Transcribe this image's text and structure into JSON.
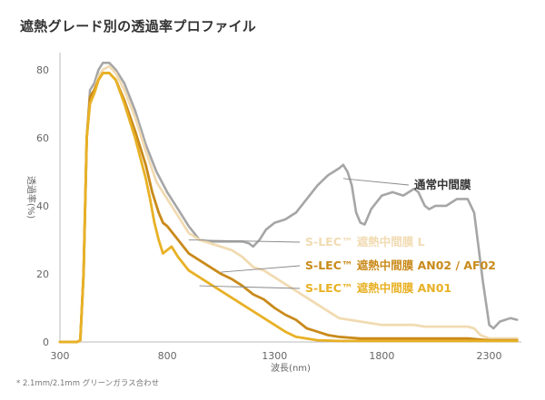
{
  "title": "遮熱グレード別の透過率プロファイル",
  "footnote": "* 2.1mm/2.1mm グリーンガラス合わせ",
  "chart_data": {
    "type": "line",
    "xlabel": "波長(nm)",
    "ylabel": "透過率(%)",
    "xlim": [
      300,
      2450
    ],
    "ylim": [
      0,
      85
    ],
    "xticks": [
      300,
      800,
      1300,
      1800,
      2300
    ],
    "yticks": [
      0,
      20,
      40,
      60,
      80
    ],
    "grid": false,
    "legend": "inline labels at right",
    "series": [
      {
        "name": "通常中間膜",
        "color": "#a6a6a6",
        "points": [
          [
            300,
            0
          ],
          [
            380,
            0
          ],
          [
            395,
            0.5
          ],
          [
            410,
            20
          ],
          [
            425,
            60
          ],
          [
            440,
            74
          ],
          [
            460,
            76
          ],
          [
            480,
            80
          ],
          [
            500,
            82
          ],
          [
            530,
            82
          ],
          [
            560,
            80
          ],
          [
            600,
            76
          ],
          [
            650,
            68
          ],
          [
            700,
            58
          ],
          [
            750,
            50
          ],
          [
            800,
            44
          ],
          [
            850,
            39
          ],
          [
            900,
            34
          ],
          [
            950,
            30
          ],
          [
            1000,
            29.5
          ],
          [
            1050,
            29.5
          ],
          [
            1100,
            29.5
          ],
          [
            1150,
            29.5
          ],
          [
            1180,
            29
          ],
          [
            1200,
            28
          ],
          [
            1230,
            30
          ],
          [
            1260,
            33
          ],
          [
            1300,
            35
          ],
          [
            1350,
            36
          ],
          [
            1400,
            38
          ],
          [
            1450,
            42
          ],
          [
            1500,
            46
          ],
          [
            1550,
            49
          ],
          [
            1600,
            51
          ],
          [
            1620,
            52
          ],
          [
            1640,
            50
          ],
          [
            1660,
            46
          ],
          [
            1680,
            38
          ],
          [
            1700,
            35
          ],
          [
            1720,
            34.5
          ],
          [
            1750,
            39
          ],
          [
            1800,
            43
          ],
          [
            1850,
            44
          ],
          [
            1900,
            43
          ],
          [
            1950,
            45
          ],
          [
            1970,
            44
          ],
          [
            2000,
            40
          ],
          [
            2020,
            39
          ],
          [
            2050,
            40
          ],
          [
            2100,
            40
          ],
          [
            2150,
            42
          ],
          [
            2200,
            42
          ],
          [
            2230,
            38
          ],
          [
            2270,
            18
          ],
          [
            2300,
            5
          ],
          [
            2320,
            4
          ],
          [
            2350,
            6
          ],
          [
            2400,
            7
          ],
          [
            2430,
            6.5
          ]
        ]
      },
      {
        "name": "S-LEC™ 遮熱中間膜 L",
        "color": "#f1dbb2",
        "points": [
          [
            300,
            0
          ],
          [
            380,
            0
          ],
          [
            395,
            0.5
          ],
          [
            410,
            20
          ],
          [
            425,
            60
          ],
          [
            440,
            72
          ],
          [
            460,
            74
          ],
          [
            480,
            78
          ],
          [
            500,
            80
          ],
          [
            530,
            81
          ],
          [
            560,
            79
          ],
          [
            600,
            74
          ],
          [
            650,
            66
          ],
          [
            700,
            56
          ],
          [
            750,
            47
          ],
          [
            800,
            42
          ],
          [
            850,
            37
          ],
          [
            900,
            32
          ],
          [
            950,
            30
          ],
          [
            1000,
            29
          ],
          [
            1050,
            28
          ],
          [
            1100,
            27
          ],
          [
            1150,
            25
          ],
          [
            1200,
            22
          ],
          [
            1250,
            21
          ],
          [
            1300,
            19
          ],
          [
            1350,
            17
          ],
          [
            1400,
            15
          ],
          [
            1450,
            13
          ],
          [
            1500,
            11
          ],
          [
            1550,
            9
          ],
          [
            1600,
            7
          ],
          [
            1650,
            6.5
          ],
          [
            1700,
            6
          ],
          [
            1750,
            5.5
          ],
          [
            1800,
            5
          ],
          [
            1850,
            5
          ],
          [
            1900,
            5
          ],
          [
            1950,
            5
          ],
          [
            2000,
            4.5
          ],
          [
            2050,
            4.5
          ],
          [
            2100,
            4.5
          ],
          [
            2150,
            4.5
          ],
          [
            2200,
            4.5
          ],
          [
            2230,
            4
          ],
          [
            2260,
            2
          ],
          [
            2300,
            1
          ],
          [
            2350,
            1
          ],
          [
            2400,
            1
          ],
          [
            2430,
            1
          ]
        ]
      },
      {
        "name": "S-LEC™ 遮熱中間膜 AN02 / AF02",
        "color": "#c98a1a",
        "points": [
          [
            300,
            0
          ],
          [
            380,
            0
          ],
          [
            395,
            0.5
          ],
          [
            410,
            20
          ],
          [
            425,
            60
          ],
          [
            440,
            72
          ],
          [
            460,
            74
          ],
          [
            480,
            77
          ],
          [
            500,
            79
          ],
          [
            530,
            79
          ],
          [
            560,
            77
          ],
          [
            600,
            71
          ],
          [
            650,
            62
          ],
          [
            700,
            52
          ],
          [
            730,
            44
          ],
          [
            760,
            38
          ],
          [
            780,
            35
          ],
          [
            800,
            34
          ],
          [
            850,
            30
          ],
          [
            900,
            26
          ],
          [
            950,
            24
          ],
          [
            1000,
            22
          ],
          [
            1050,
            20
          ],
          [
            1100,
            18.5
          ],
          [
            1150,
            16.5
          ],
          [
            1200,
            14
          ],
          [
            1250,
            12.5
          ],
          [
            1300,
            10
          ],
          [
            1350,
            8
          ],
          [
            1400,
            6.5
          ],
          [
            1450,
            4
          ],
          [
            1500,
            3
          ],
          [
            1550,
            2
          ],
          [
            1600,
            1.5
          ],
          [
            1700,
            1
          ],
          [
            1800,
            1
          ],
          [
            2000,
            1
          ],
          [
            2200,
            1
          ],
          [
            2300,
            0.5
          ],
          [
            2430,
            0.5
          ]
        ]
      },
      {
        "name": "S-LEC™ 遮熱中間膜 AN01",
        "color": "#e8b125",
        "points": [
          [
            300,
            0
          ],
          [
            380,
            0
          ],
          [
            395,
            0.5
          ],
          [
            410,
            20
          ],
          [
            425,
            60
          ],
          [
            440,
            70
          ],
          [
            460,
            73
          ],
          [
            480,
            77
          ],
          [
            500,
            79
          ],
          [
            530,
            79
          ],
          [
            560,
            77
          ],
          [
            600,
            70
          ],
          [
            650,
            60
          ],
          [
            700,
            48
          ],
          [
            720,
            42
          ],
          [
            740,
            35
          ],
          [
            760,
            30
          ],
          [
            780,
            26
          ],
          [
            800,
            27
          ],
          [
            820,
            28
          ],
          [
            850,
            25
          ],
          [
            900,
            21
          ],
          [
            950,
            19
          ],
          [
            1000,
            17
          ],
          [
            1050,
            15
          ],
          [
            1100,
            13
          ],
          [
            1150,
            11
          ],
          [
            1200,
            9
          ],
          [
            1250,
            7
          ],
          [
            1300,
            5
          ],
          [
            1350,
            3
          ],
          [
            1400,
            1.5
          ],
          [
            1450,
            1
          ],
          [
            1500,
            0.5
          ],
          [
            1600,
            0.3
          ],
          [
            2000,
            0.3
          ],
          [
            2430,
            0.3
          ]
        ]
      }
    ],
    "annotations": [
      {
        "text": "通常中間膜",
        "series": "通常中間膜",
        "x": 1620,
        "y": 48,
        "color": "#333333"
      },
      {
        "text": "S-LEC™ 遮熱中間膜 L",
        "series": "S-LEC™ 遮熱中間膜 L",
        "x": 900,
        "y": 30,
        "color": "#f1dbb2"
      },
      {
        "text": "S-LEC™ 遮熱中間膜 AN02 / AF02",
        "series": "S-LEC™ 遮熱中間膜 AN02 / AF02",
        "x": 1050,
        "y": 20.5,
        "color": "#c98a1a"
      },
      {
        "text": "S-LEC™ 遮熱中間膜 AN01",
        "series": "S-LEC™ 遮熱中間膜 AN01",
        "x": 950,
        "y": 16.5,
        "color": "#e8b125"
      }
    ]
  }
}
